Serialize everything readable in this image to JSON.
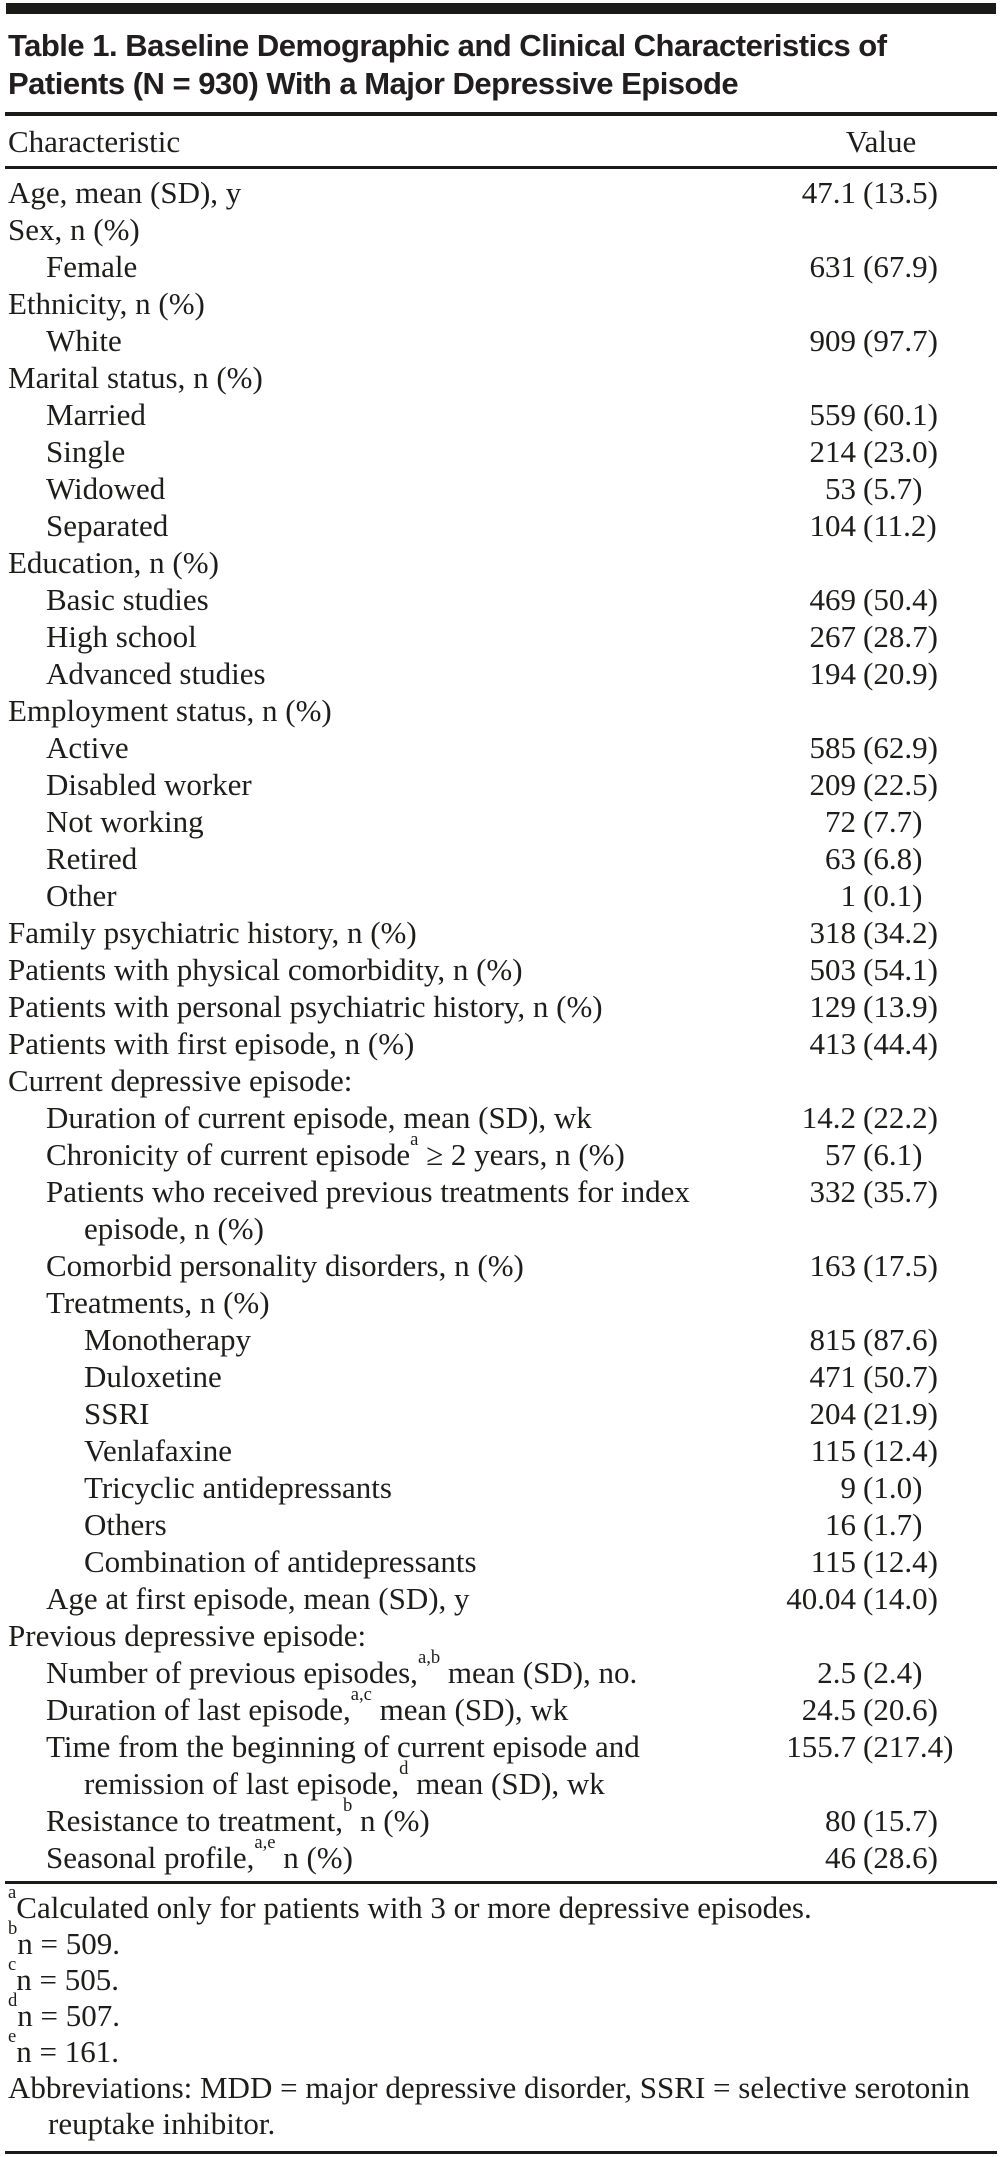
{
  "title": "Table 1. Baseline Demographic and Clinical Characteristics of Patients (N = 930) With a Major Depressive Episode",
  "columns": {
    "characteristic": "Characteristic",
    "value": "Value"
  },
  "rows": [
    {
      "pre": "Age, mean (SD), y",
      "sup": "",
      "post": "",
      "n": "47.1",
      "pct": "(13.5)",
      "indent": 0
    },
    {
      "pre": "Sex, n (%)",
      "sup": "",
      "post": "",
      "n": "",
      "pct": "",
      "indent": 0
    },
    {
      "pre": "Female",
      "sup": "",
      "post": "",
      "n": "631",
      "pct": "(67.9)",
      "indent": 1
    },
    {
      "pre": "Ethnicity, n (%)",
      "sup": "",
      "post": "",
      "n": "",
      "pct": "",
      "indent": 0
    },
    {
      "pre": "White",
      "sup": "",
      "post": "",
      "n": "909",
      "pct": "(97.7)",
      "indent": 1
    },
    {
      "pre": "Marital status, n (%)",
      "sup": "",
      "post": "",
      "n": "",
      "pct": "",
      "indent": 0
    },
    {
      "pre": "Married",
      "sup": "",
      "post": "",
      "n": "559",
      "pct": "(60.1)",
      "indent": 1
    },
    {
      "pre": "Single",
      "sup": "",
      "post": "",
      "n": "214",
      "pct": "(23.0)",
      "indent": 1
    },
    {
      "pre": "Widowed",
      "sup": "",
      "post": "",
      "n": "53",
      "pct": "(5.7)",
      "indent": 1
    },
    {
      "pre": "Separated",
      "sup": "",
      "post": "",
      "n": "104",
      "pct": "(11.2)",
      "indent": 1
    },
    {
      "pre": "Education, n (%)",
      "sup": "",
      "post": "",
      "n": "",
      "pct": "",
      "indent": 0
    },
    {
      "pre": "Basic studies",
      "sup": "",
      "post": "",
      "n": "469",
      "pct": "(50.4)",
      "indent": 1
    },
    {
      "pre": "High school",
      "sup": "",
      "post": "",
      "n": "267",
      "pct": "(28.7)",
      "indent": 1
    },
    {
      "pre": "Advanced studies",
      "sup": "",
      "post": "",
      "n": "194",
      "pct": "(20.9)",
      "indent": 1
    },
    {
      "pre": "Employment status, n (%)",
      "sup": "",
      "post": "",
      "n": "",
      "pct": "",
      "indent": 0
    },
    {
      "pre": "Active",
      "sup": "",
      "post": "",
      "n": "585",
      "pct": "(62.9)",
      "indent": 1
    },
    {
      "pre": "Disabled worker",
      "sup": "",
      "post": "",
      "n": "209",
      "pct": "(22.5)",
      "indent": 1
    },
    {
      "pre": "Not working",
      "sup": "",
      "post": "",
      "n": "72",
      "pct": "(7.7)",
      "indent": 1
    },
    {
      "pre": "Retired",
      "sup": "",
      "post": "",
      "n": "63",
      "pct": "(6.8)",
      "indent": 1
    },
    {
      "pre": "Other",
      "sup": "",
      "post": "",
      "n": "1",
      "pct": "(0.1)",
      "indent": 1
    },
    {
      "pre": "Family psychiatric history, n (%)",
      "sup": "",
      "post": "",
      "n": "318",
      "pct": "(34.2)",
      "indent": 0
    },
    {
      "pre": "Patients with physical comorbidity, n (%)",
      "sup": "",
      "post": "",
      "n": "503",
      "pct": "(54.1)",
      "indent": 0
    },
    {
      "pre": "Patients with personal psychiatric history, n (%)",
      "sup": "",
      "post": "",
      "n": "129",
      "pct": "(13.9)",
      "indent": 0
    },
    {
      "pre": "Patients with first episode, n (%)",
      "sup": "",
      "post": "",
      "n": "413",
      "pct": "(44.4)",
      "indent": 0
    },
    {
      "pre": "Current depressive episode:",
      "sup": "",
      "post": "",
      "n": "",
      "pct": "",
      "indent": 0
    },
    {
      "pre": "Duration of current episode, mean (SD), wk",
      "sup": "",
      "post": "",
      "n": "14.2",
      "pct": "(22.2)",
      "indent": 1
    },
    {
      "pre": "Chronicity of current episode",
      "sup": "a",
      "post": " ≥ 2 years, n (%)",
      "n": "57",
      "pct": "(6.1)",
      "indent": 1
    },
    {
      "pre": "Patients who received previous treatments for index episode, n (%)",
      "sup": "",
      "post": "",
      "n": "332",
      "pct": "(35.7)",
      "indent": 1
    },
    {
      "pre": "Comorbid personality disorders, n (%)",
      "sup": "",
      "post": "",
      "n": "163",
      "pct": "(17.5)",
      "indent": 1
    },
    {
      "pre": "Treatments, n (%)",
      "sup": "",
      "post": "",
      "n": "",
      "pct": "",
      "indent": 1
    },
    {
      "pre": "Monotherapy",
      "sup": "",
      "post": "",
      "n": "815",
      "pct": "(87.6)",
      "indent": 2
    },
    {
      "pre": "Duloxetine",
      "sup": "",
      "post": "",
      "n": "471",
      "pct": "(50.7)",
      "indent": 2
    },
    {
      "pre": "SSRI",
      "sup": "",
      "post": "",
      "n": "204",
      "pct": "(21.9)",
      "indent": 2
    },
    {
      "pre": "Venlafaxine",
      "sup": "",
      "post": "",
      "n": "115",
      "pct": "(12.4)",
      "indent": 2
    },
    {
      "pre": "Tricyclic antidepressants",
      "sup": "",
      "post": "",
      "n": "9",
      "pct": "(1.0)",
      "indent": 2
    },
    {
      "pre": "Others",
      "sup": "",
      "post": "",
      "n": "16",
      "pct": "(1.7)",
      "indent": 2
    },
    {
      "pre": "Combination of antidepressants",
      "sup": "",
      "post": "",
      "n": "115",
      "pct": "(12.4)",
      "indent": 2
    },
    {
      "pre": "Age at first episode, mean (SD), y",
      "sup": "",
      "post": "",
      "n": "40.04",
      "pct": "(14.0)",
      "indent": 1
    },
    {
      "pre": "Previous depressive episode:",
      "sup": "",
      "post": "",
      "n": "",
      "pct": "",
      "indent": 0
    },
    {
      "pre": "Number of previous episodes,",
      "sup": "a,b",
      "post": " mean (SD), no.",
      "n": "2.5",
      "pct": "(2.4)",
      "indent": 1
    },
    {
      "pre": "Duration of last episode,",
      "sup": "a,c",
      "post": " mean (SD), wk",
      "n": "24.5",
      "pct": "(20.6)",
      "indent": 1
    },
    {
      "pre": "Time from the beginning of current episode and remission of last episode,",
      "sup": "d",
      "post": " mean (SD), wk",
      "n": "155.7",
      "pct": "(217.4)",
      "indent": 1
    },
    {
      "pre": "Resistance to treatment,",
      "sup": "b",
      "post": " n (%)",
      "n": "80",
      "pct": "(15.7)",
      "indent": 1
    },
    {
      "pre": "Seasonal profile,",
      "sup": "a,e",
      "post": " n (%)",
      "n": "46",
      "pct": "(28.6)",
      "indent": 1
    }
  ],
  "footnotes": [
    {
      "sup": "a",
      "text": "Calculated only for patients with 3 or more depressive episodes."
    },
    {
      "sup": "b",
      "text": "n = 509."
    },
    {
      "sup": "c",
      "text": "n = 505."
    },
    {
      "sup": "d",
      "text": "n = 507."
    },
    {
      "sup": "e",
      "text": "n = 161."
    },
    {
      "sup": "",
      "text": "Abbreviations: MDD = major depressive disorder, SSRI = selective serotonin reuptake inhibitor."
    }
  ]
}
